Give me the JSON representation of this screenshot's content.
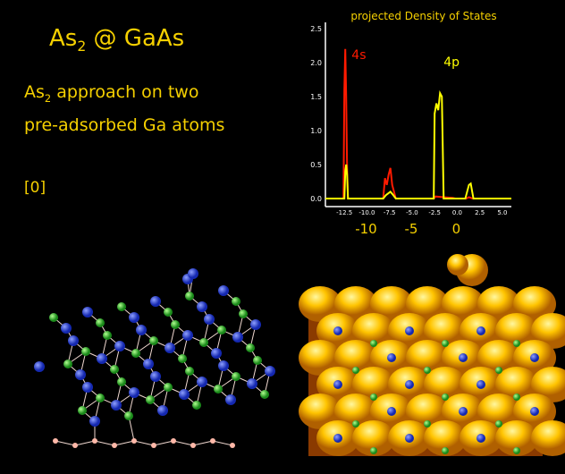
{
  "title": {
    "main": "As",
    "sub": "2",
    "rest": " @ GaAs"
  },
  "subtitle": {
    "line1_main": "As",
    "line1_sub": "2",
    "line1_rest": " approach on two",
    "line2": "pre-adsorbed Ga atoms"
  },
  "frame_label": "[0]",
  "colors": {
    "text": "#f5d000",
    "s_curve": "#ff1a00",
    "p_curve": "#ffff00",
    "as_atom": "#2040e0",
    "ga_atom": "#40c040",
    "h_atom": "#ffb0a0",
    "isosurface": "#ffc000"
  },
  "chart_data": {
    "type": "line",
    "title": "projected Density of States",
    "xlim": [
      -14.6,
      6.0
    ],
    "ylim": [
      0,
      2.6
    ],
    "yticks": [
      "0.0",
      "0.5",
      "1.0",
      "1.5",
      "2.0",
      "2.5"
    ],
    "ytick_values": [
      0,
      0.5,
      1.0,
      1.5,
      2.0,
      2.5
    ],
    "xticks": [
      "-12.5",
      "-10.0",
      "-7.5",
      "-5.0",
      "-2.5",
      "0.0",
      "2.5",
      "5.0"
    ],
    "xtick_values": [
      -12.5,
      -10,
      -7.5,
      -5,
      -2.5,
      0,
      2.5,
      5
    ],
    "big_xticks": [
      "-10",
      "-5",
      "0"
    ],
    "big_xtick_values": [
      -10,
      -5,
      0
    ],
    "annotations": [
      {
        "text": "4s",
        "x": -11.7,
        "y": 2.05,
        "color": "#ff1a00"
      },
      {
        "text": "4p",
        "x": -1.5,
        "y": 1.95,
        "color": "#ffff00"
      }
    ],
    "series": [
      {
        "name": "4s",
        "color": "#ff1a00",
        "points": [
          [
            -14.6,
            0
          ],
          [
            -12.6,
            0
          ],
          [
            -12.5,
            1.6
          ],
          [
            -12.4,
            2.2
          ],
          [
            -12.3,
            1.5
          ],
          [
            -12.2,
            0.45
          ],
          [
            -12.1,
            0
          ],
          [
            -8.2,
            0
          ],
          [
            -8.0,
            0.3
          ],
          [
            -7.8,
            0.2
          ],
          [
            -7.6,
            0.35
          ],
          [
            -7.4,
            0.45
          ],
          [
            -7.2,
            0.2
          ],
          [
            -6.9,
            0.05
          ],
          [
            -6.8,
            0
          ],
          [
            -2.6,
            0
          ],
          [
            -2.4,
            0.03
          ],
          [
            -1.5,
            0.02
          ],
          [
            -0.5,
            0.01
          ],
          [
            -0.2,
            0
          ],
          [
            1.0,
            0
          ],
          [
            1.3,
            0.02
          ],
          [
            1.7,
            0
          ],
          [
            6,
            0
          ]
        ]
      },
      {
        "name": "4p",
        "color": "#ffff00",
        "points": [
          [
            -14.6,
            0
          ],
          [
            -12.5,
            0
          ],
          [
            -12.4,
            0.4
          ],
          [
            -12.3,
            0.5
          ],
          [
            -12.2,
            0.35
          ],
          [
            -12.1,
            0
          ],
          [
            -8.2,
            0
          ],
          [
            -7.9,
            0.05
          ],
          [
            -7.6,
            0.08
          ],
          [
            -7.4,
            0.1
          ],
          [
            -7.2,
            0.07
          ],
          [
            -6.8,
            0
          ],
          [
            -2.6,
            0
          ],
          [
            -2.5,
            1.25
          ],
          [
            -2.3,
            1.4
          ],
          [
            -2.1,
            1.3
          ],
          [
            -1.9,
            1.55
          ],
          [
            -1.7,
            1.5
          ],
          [
            -1.5,
            0
          ],
          [
            0.9,
            0
          ],
          [
            1.3,
            0.2
          ],
          [
            1.5,
            0.22
          ],
          [
            1.8,
            0
          ],
          [
            6,
            0
          ]
        ]
      }
    ]
  }
}
